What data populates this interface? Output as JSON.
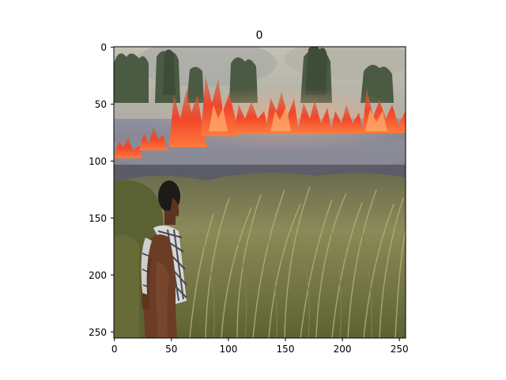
{
  "figure": {
    "title": "0",
    "description_free": true
  },
  "axes": {
    "x_ticks": [
      "0",
      "50",
      "100",
      "150",
      "200",
      "250"
    ],
    "y_ticks": [
      "0",
      "50",
      "100",
      "150",
      "200",
      "250"
    ],
    "x_range": [
      0,
      256
    ],
    "y_range": [
      0,
      256
    ]
  },
  "colors": {
    "sky": "#b9b6aa",
    "smoke": "#9c9ba8",
    "flame": "#f0502a",
    "flame_core": "#ffb060",
    "trees": "#4a5a3e",
    "grass_light": "#a7a36c",
    "grass_dark": "#4f5a2e",
    "skin": "#6b3c26",
    "shirt": "#dcdcdc"
  }
}
